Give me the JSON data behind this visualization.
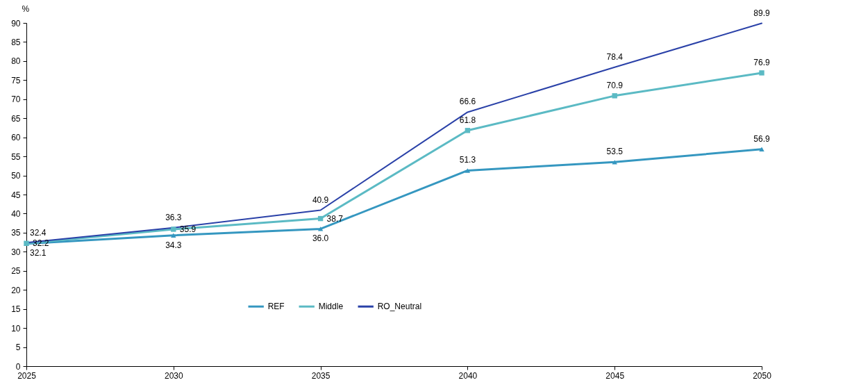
{
  "chart_data": {
    "type": "line",
    "ylabel": "%",
    "x": [
      2025,
      2030,
      2035,
      2040,
      2045,
      2050
    ],
    "xlim": [
      2025,
      2050
    ],
    "xticks": [
      2025,
      2030,
      2035,
      2040,
      2045,
      2050
    ],
    "ylim": [
      0,
      90
    ],
    "yticks": [
      0,
      5,
      10,
      15,
      20,
      25,
      30,
      35,
      40,
      45,
      50,
      55,
      60,
      65,
      70,
      75,
      80,
      85,
      90
    ],
    "legend": "bottom",
    "series": [
      {
        "name": "REF",
        "color": "#3597c0",
        "marker": "triangle",
        "values": [
          32.1,
          34.3,
          36.0,
          51.3,
          53.5,
          56.9
        ],
        "value_labels": [
          "32.1",
          "34.3",
          "36.0",
          "51.3",
          "53.5",
          "56.9"
        ]
      },
      {
        "name": "Middle",
        "color": "#5bbac4",
        "marker": "square",
        "values": [
          32.2,
          35.9,
          38.7,
          61.8,
          70.9,
          76.9
        ],
        "value_labels": [
          "32.2",
          "35.9",
          "38.7",
          "61.8",
          "70.9",
          "76.9"
        ]
      },
      {
        "name": "RO_Neutral",
        "color": "#2a41a8",
        "marker": "none",
        "values": [
          32.4,
          36.3,
          40.9,
          66.6,
          78.4,
          89.9
        ],
        "value_labels": [
          "32.4",
          "36.3",
          "40.9",
          "66.6",
          "78.4",
          "89.9"
        ]
      }
    ]
  }
}
